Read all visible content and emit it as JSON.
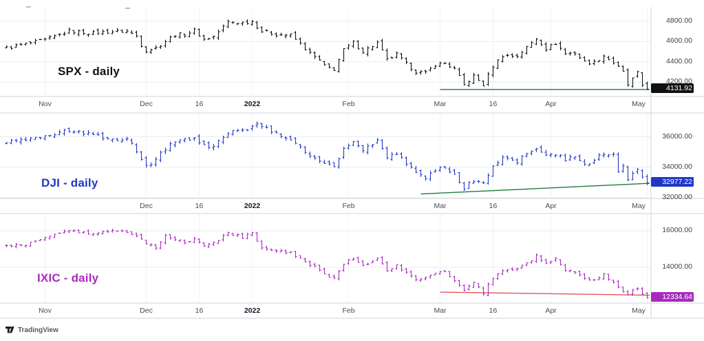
{
  "watermark": {
    "logo_icon": "tradingview-logo",
    "label": "TradingView"
  },
  "chart_data": [
    {
      "type": "bar",
      "style": "ohlc_bars",
      "symbol": "SPX",
      "title": "SPX - daily",
      "timeframe": "daily",
      "color": "#111111",
      "last_price": 4131.92,
      "badge": {
        "label": "4131.92",
        "bg": "#111111",
        "fg": "#ffffff"
      },
      "y_axis": {
        "side": "right",
        "domain": [
          4060,
          4940
        ],
        "grid_values": [
          4800,
          4600,
          4400,
          4200
        ],
        "labels": [
          "4800.00",
          "4600.00",
          "4400.00",
          "4200.00"
        ]
      },
      "x_ticks": [
        {
          "label": "Nov",
          "index": 8
        },
        {
          "label": "Dec",
          "index": 29
        },
        {
          "label": "16",
          "index": 40
        },
        {
          "label": "2022",
          "index": 51,
          "bold": true
        },
        {
          "label": "Feb",
          "index": 71
        },
        {
          "label": "Mar",
          "index": 90
        },
        {
          "label": "16",
          "index": 101
        },
        {
          "label": "Apr",
          "index": 113
        },
        {
          "label": "May",
          "index": 133
        }
      ],
      "trendline": {
        "color": "#1d7a3b",
        "from": [
          90,
          4128
        ],
        "to": [
          134,
          4128
        ]
      },
      "bar_count": 134,
      "approx_daily_range": 70,
      "waypoints": [
        [
          0,
          4536
        ],
        [
          4,
          4575
        ],
        [
          8,
          4614
        ],
        [
          13,
          4702
        ],
        [
          16,
          4690
        ],
        [
          18,
          4683
        ],
        [
          22,
          4698
        ],
        [
          25,
          4701
        ],
        [
          27,
          4655
        ],
        [
          28,
          4567
        ],
        [
          29,
          4513
        ],
        [
          31,
          4538
        ],
        [
          35,
          4668
        ],
        [
          37,
          4669
        ],
        [
          39,
          4710
        ],
        [
          41,
          4621
        ],
        [
          43,
          4649
        ],
        [
          46,
          4791
        ],
        [
          49,
          4786
        ],
        [
          51,
          4797
        ],
        [
          53,
          4700
        ],
        [
          56,
          4670
        ],
        [
          59,
          4663
        ],
        [
          61,
          4577
        ],
        [
          63,
          4483
        ],
        [
          65,
          4410
        ],
        [
          66,
          4356
        ],
        [
          68,
          4327
        ],
        [
          70,
          4516
        ],
        [
          72,
          4589
        ],
        [
          74,
          4501
        ],
        [
          77,
          4587
        ],
        [
          79,
          4419
        ],
        [
          81,
          4471
        ],
        [
          83,
          4380
        ],
        [
          85,
          4305
        ],
        [
          87,
          4288
        ],
        [
          89,
          4374
        ],
        [
          91,
          4387
        ],
        [
          93,
          4329
        ],
        [
          95,
          4171
        ],
        [
          97,
          4260
        ],
        [
          99,
          4173
        ],
        [
          101,
          4358
        ],
        [
          103,
          4463
        ],
        [
          106,
          4456
        ],
        [
          108,
          4543
        ],
        [
          110,
          4632
        ],
        [
          112,
          4530
        ],
        [
          114,
          4583
        ],
        [
          116,
          4481
        ],
        [
          118,
          4488
        ],
        [
          120,
          4397
        ],
        [
          122,
          4393
        ],
        [
          124,
          4462
        ],
        [
          126,
          4393
        ],
        [
          128,
          4296
        ],
        [
          129,
          4175
        ],
        [
          131,
          4287
        ],
        [
          132,
          4172
        ],
        [
          133,
          4131.92
        ]
      ]
    },
    {
      "type": "bar",
      "style": "ohlc_bars",
      "symbol": "DJI",
      "title": "DJI - daily",
      "timeframe": "daily",
      "color": "#2038c6",
      "last_price": 32977.22,
      "badge": {
        "label": "32977.22",
        "bg": "#2038c6",
        "fg": "#ffffff"
      },
      "y_axis": {
        "side": "right",
        "domain": [
          31960,
          37560
        ],
        "grid_values": [
          36000,
          34000,
          32000
        ],
        "labels": [
          "36000.00",
          "34000.00",
          "32000.00"
        ]
      },
      "x_ticks": [
        {
          "label": "Dec",
          "index": 29
        },
        {
          "label": "16",
          "index": 40
        },
        {
          "label": "2022",
          "index": 51,
          "bold": true
        },
        {
          "label": "Feb",
          "index": 71
        },
        {
          "label": "Mar",
          "index": 90
        },
        {
          "label": "16",
          "index": 101
        },
        {
          "label": "Apr",
          "index": 113
        },
        {
          "label": "May",
          "index": 133
        }
      ],
      "trendline": {
        "color": "#1d7a3b",
        "from": [
          86,
          32250
        ],
        "to": [
          134,
          32950
        ]
      },
      "bar_count": 134,
      "approx_daily_range": 520,
      "waypoints": [
        [
          0,
          35700
        ],
        [
          4,
          35740
        ],
        [
          8,
          36050
        ],
        [
          13,
          36430
        ],
        [
          18,
          36150
        ],
        [
          22,
          35870
        ],
        [
          25,
          35800
        ],
        [
          27,
          35130
        ],
        [
          28,
          34484
        ],
        [
          29,
          34022
        ],
        [
          31,
          34580
        ],
        [
          35,
          35755
        ],
        [
          39,
          35930
        ],
        [
          41,
          35365
        ],
        [
          43,
          35490
        ],
        [
          46,
          36300
        ],
        [
          49,
          36400
        ],
        [
          51,
          36585
        ],
        [
          52,
          36800
        ],
        [
          56,
          36250
        ],
        [
          59,
          35912
        ],
        [
          61,
          35369
        ],
        [
          63,
          34715
        ],
        [
          65,
          34364
        ],
        [
          66,
          34297
        ],
        [
          68,
          34160
        ],
        [
          70,
          35132
        ],
        [
          72,
          35629
        ],
        [
          74,
          35090
        ],
        [
          77,
          35768
        ],
        [
          79,
          34738
        ],
        [
          81,
          34989
        ],
        [
          83,
          34312
        ],
        [
          85,
          33597
        ],
        [
          87,
          33224
        ],
        [
          89,
          33893
        ],
        [
          91,
          33891
        ],
        [
          93,
          33615
        ],
        [
          95,
          32632
        ],
        [
          97,
          33174
        ],
        [
          99,
          32945
        ],
        [
          101,
          34063
        ],
        [
          103,
          34755
        ],
        [
          106,
          34358
        ],
        [
          108,
          34861
        ],
        [
          110,
          35294
        ],
        [
          112,
          34678
        ],
        [
          114,
          34922
        ],
        [
          116,
          34496
        ],
        [
          118,
          34721
        ],
        [
          120,
          34220
        ],
        [
          122,
          34451
        ],
        [
          124,
          34911
        ],
        [
          126,
          34793
        ],
        [
          127,
          33811
        ],
        [
          128,
          34049
        ],
        [
          129,
          33240
        ],
        [
          131,
          33916
        ],
        [
          132,
          33300
        ],
        [
          133,
          32977.22
        ]
      ]
    },
    {
      "type": "bar",
      "style": "ohlc_bars",
      "symbol": "IXIC",
      "title": "IXIC - daily",
      "timeframe": "daily",
      "color": "#a82bbf",
      "last_price": 12334.64,
      "badge": {
        "label": "12334.64",
        "bg": "#a82bbf",
        "fg": "#ffffff"
      },
      "y_axis": {
        "side": "right",
        "domain": [
          12037,
          16943
        ],
        "grid_values": [
          16000,
          14000
        ],
        "labels": [
          "16000.00",
          "14000.00"
        ]
      },
      "x_ticks": [
        {
          "label": "Nov",
          "index": 8
        },
        {
          "label": "Dec",
          "index": 29
        },
        {
          "label": "16",
          "index": 40
        },
        {
          "label": "2022",
          "index": 51,
          "bold": true
        },
        {
          "label": "Feb",
          "index": 71
        },
        {
          "label": "Mar",
          "index": 90
        },
        {
          "label": "16",
          "index": 101
        },
        {
          "label": "Apr",
          "index": 113
        },
        {
          "label": "May",
          "index": 133
        }
      ],
      "trendline": {
        "color": "#e35656",
        "from": [
          90,
          12640
        ],
        "to": [
          134,
          12470
        ]
      },
      "bar_count": 134,
      "approx_daily_range": 320,
      "waypoints": [
        [
          0,
          15150
        ],
        [
          4,
          15235
        ],
        [
          8,
          15596
        ],
        [
          13,
          15983
        ],
        [
          18,
          15854
        ],
        [
          22,
          16057
        ],
        [
          25,
          15845
        ],
        [
          28,
          15538
        ],
        [
          29,
          15254
        ],
        [
          31,
          15085
        ],
        [
          33,
          15687
        ],
        [
          37,
          15413
        ],
        [
          39,
          15566
        ],
        [
          41,
          15170
        ],
        [
          43,
          15341
        ],
        [
          46,
          15871
        ],
        [
          49,
          15645
        ],
        [
          51,
          15833
        ],
        [
          53,
          15100
        ],
        [
          56,
          14943
        ],
        [
          59,
          14806
        ],
        [
          61,
          14507
        ],
        [
          63,
          14154
        ],
        [
          65,
          13855
        ],
        [
          68,
          13352
        ],
        [
          70,
          14240
        ],
        [
          72,
          14418
        ],
        [
          74,
          14098
        ],
        [
          77,
          14490
        ],
        [
          79,
          13791
        ],
        [
          81,
          14140
        ],
        [
          83,
          13717
        ],
        [
          85,
          13381
        ],
        [
          87,
          13473
        ],
        [
          89,
          13751
        ],
        [
          91,
          13752
        ],
        [
          93,
          13313
        ],
        [
          95,
          12796
        ],
        [
          97,
          13130
        ],
        [
          99,
          12581
        ],
        [
          101,
          13437
        ],
        [
          103,
          13894
        ],
        [
          106,
          13923
        ],
        [
          108,
          14170
        ],
        [
          110,
          14620
        ],
        [
          112,
          14221
        ],
        [
          114,
          14533
        ],
        [
          116,
          13889
        ],
        [
          118,
          13711
        ],
        [
          120,
          13372
        ],
        [
          122,
          13351
        ],
        [
          124,
          13620
        ],
        [
          126,
          13175
        ],
        [
          127,
          12839
        ],
        [
          129,
          12490
        ],
        [
          131,
          12872
        ],
        [
          132,
          12560
        ],
        [
          133,
          12334.64
        ]
      ]
    }
  ]
}
